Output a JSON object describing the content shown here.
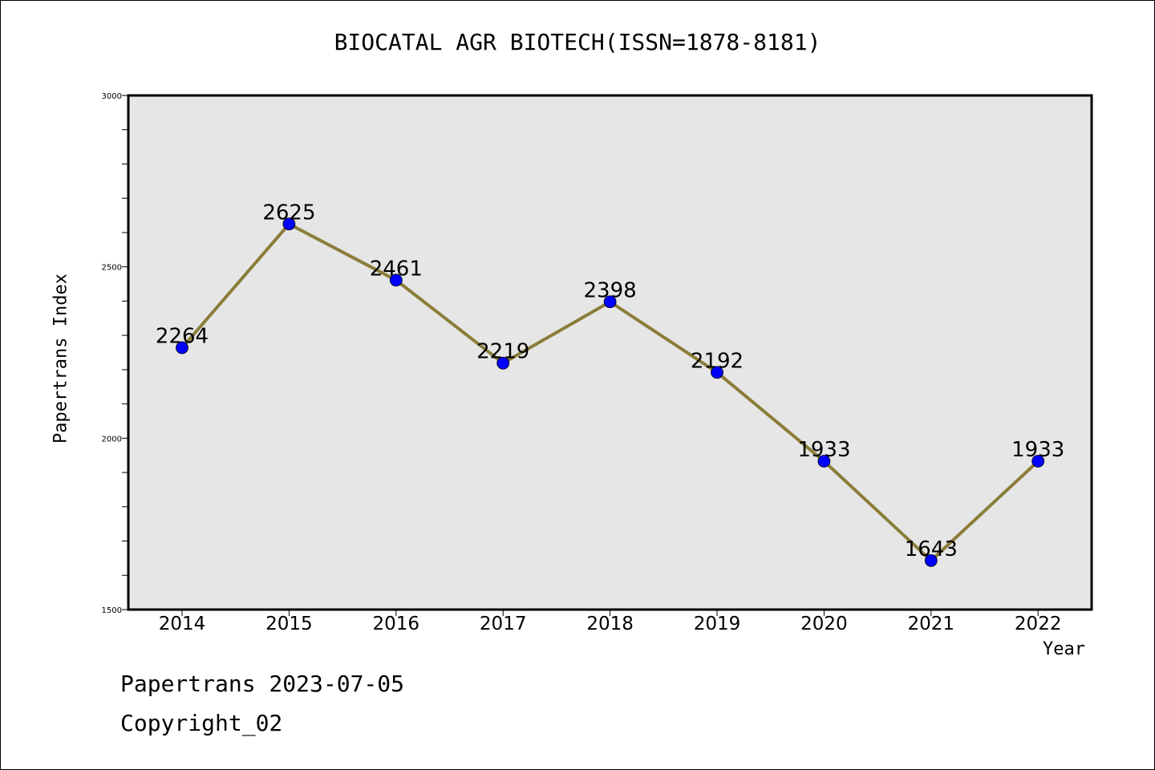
{
  "chart_data": {
    "type": "line",
    "title": "BIOCATAL AGR BIOTECH(ISSN=1878-8181)",
    "xlabel": "Year",
    "ylabel": "Papertrans Index",
    "categories": [
      "2014",
      "2015",
      "2016",
      "2017",
      "2018",
      "2019",
      "2020",
      "2021",
      "2022"
    ],
    "series": [
      {
        "values": [
          2264,
          2625,
          2461,
          2219,
          2398,
          2192,
          1933,
          1643,
          1933
        ]
      }
    ],
    "data_labels": [
      "2264",
      "2625",
      "2461",
      "2219",
      "2398",
      "2192",
      "1933",
      "1643",
      "1933"
    ],
    "ylim": [
      1500,
      3000
    ],
    "yticks": [
      "1500",
      "2000",
      "2500",
      "3000"
    ],
    "grid": false,
    "legend": "none",
    "colors": {
      "line": "#8b7d3a",
      "marker": "#0000ff",
      "plot_background": "#e6e6e6"
    }
  },
  "footer": {
    "date_line": "Papertrans 2023-07-05",
    "copyright_line": "Copyright_02"
  }
}
